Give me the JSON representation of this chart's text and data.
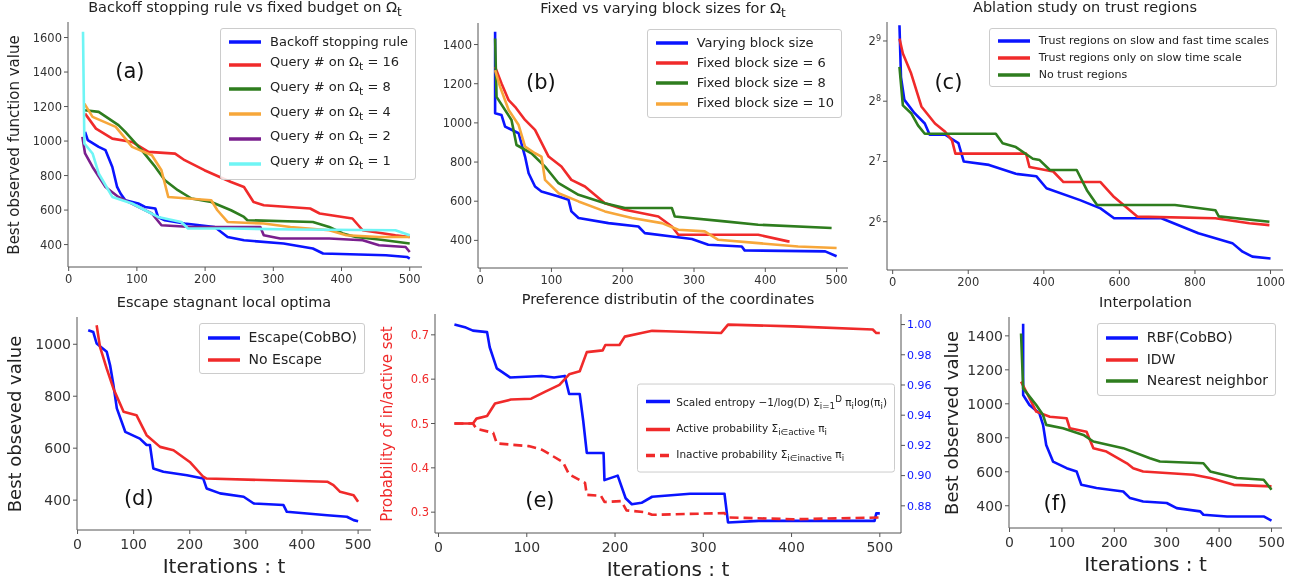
{
  "chart_data": [
    {
      "type": "line",
      "title": "Backoff stopping rule vs fixed budget on Ω$_{t}$",
      "ylabel": "Best observed function value",
      "annotations": [
        "(a)"
      ],
      "xlim": [
        -1,
        518
      ],
      "xticks": [
        0,
        100,
        200,
        300,
        400,
        500
      ],
      "ylim": [
        270,
        1690
      ],
      "yticks": [
        400,
        600,
        800,
        1000,
        1200,
        1400,
        1600
      ],
      "legend": "top right",
      "series": [
        {
          "name": "Backoff stopping rule",
          "color": "#0a14ff",
          "x": [
            24,
            28,
            44,
            54,
            64,
            71,
            76,
            83,
            102,
            112,
            127,
            131,
            141,
            170,
            214,
            233,
            257,
            315,
            358,
            373,
            465,
            496,
            500
          ],
          "values": [
            1053,
            1005,
            966,
            947,
            850,
            734,
            696,
            657,
            638,
            618,
            609,
            560,
            541,
            522,
            502,
            444,
            425,
            406,
            377,
            348,
            338,
            328,
            319
          ]
        },
        {
          "name": "Query # on Ω$_{t}$ = 16",
          "color": "#f02a2a",
          "x": [
            24,
            40,
            64,
            93,
            117,
            156,
            170,
            199,
            238,
            257,
            271,
            286,
            354,
            368,
            416,
            431,
            479,
            500
          ],
          "values": [
            1159,
            1072,
            1014,
            995,
            937,
            927,
            889,
            831,
            763,
            734,
            647,
            628,
            609,
            580,
            551,
            483,
            454,
            444
          ]
        },
        {
          "name": "Query # on Ω$_{t}$ = 8",
          "color": "#2e7d1e",
          "x": [
            24,
            44,
            73,
            83,
            107,
            127,
            141,
            160,
            180,
            209,
            238,
            257,
            262,
            358,
            382,
            402,
            421,
            455,
            500
          ],
          "values": [
            1179,
            1169,
            1092,
            1053,
            947,
            850,
            773,
            715,
            667,
            647,
            599,
            560,
            541,
            531,
            502,
            464,
            444,
            429,
            406
          ]
        },
        {
          "name": "Query # on Ω$_{t}$ = 4",
          "color": "#f7a73a",
          "x": [
            23,
            35,
            69,
            93,
            122,
            136,
            146,
            209,
            218,
            233,
            286,
            325,
            382,
            407,
            455,
            500
          ],
          "values": [
            1217,
            1140,
            1082,
            966,
            918,
            831,
            676,
            657,
            599,
            531,
            522,
            502,
            483,
            454,
            444,
            444
          ]
        },
        {
          "name": "Query # on Ω$_{t}$ = 2",
          "color": "#7a1f8e",
          "x": [
            20,
            24,
            35,
            54,
            73,
            102,
            122,
            136,
            180,
            281,
            286,
            310,
            382,
            431,
            455,
            494,
            500
          ],
          "values": [
            1024,
            928,
            850,
            734,
            676,
            618,
            580,
            512,
            502,
            502,
            454,
            435,
            435,
            425,
            396,
            386,
            357
          ]
        },
        {
          "name": "Query # on Ω$_{t}$ = 1",
          "color": "#6ff5f5",
          "x": [
            21,
            23,
            35,
            44,
            64,
            93,
            107,
            131,
            165,
            175,
            238,
            334,
            479,
            500
          ],
          "values": [
            1633,
            986,
            928,
            812,
            676,
            638,
            609,
            560,
            531,
            493,
            493,
            487,
            483,
            454
          ]
        }
      ]
    },
    {
      "type": "line",
      "title": "Fixed vs varying block sizes for Ω$_{t}$",
      "annotations": [
        "(b)"
      ],
      "xlim": [
        -3,
        516
      ],
      "xticks": [
        0,
        100,
        200,
        300,
        400,
        500
      ],
      "ylim": [
        259,
        1510
      ],
      "yticks": [
        400,
        600,
        800,
        1000,
        1200,
        1400
      ],
      "legend": "top right",
      "series": [
        {
          "name": "Varying block size",
          "color": "#0a14ff",
          "x": [
            21,
            21,
            30,
            35,
            54,
            63,
            68,
            77,
            86,
            110,
            124,
            128,
            138,
            180,
            222,
            231,
            269,
            297,
            320,
            367,
            371,
            484,
            500
          ],
          "values": [
            1465,
            1049,
            1040,
            981,
            947,
            828,
            743,
            675,
            650,
            624,
            607,
            548,
            514,
            488,
            471,
            437,
            420,
            407,
            378,
            369,
            349,
            344,
            319
          ]
        },
        {
          "name": "Fixed block size = 6",
          "color": "#f02a2a",
          "x": [
            21,
            30,
            40,
            49,
            63,
            77,
            96,
            114,
            128,
            147,
            175,
            203,
            250,
            269,
            278,
            390,
            432,
            434
          ],
          "values": [
            1286,
            1201,
            1116,
            1082,
            1015,
            964,
            828,
            777,
            709,
            675,
            590,
            556,
            522,
            471,
            429,
            429,
            395,
            395
          ]
        },
        {
          "name": "Fixed block size = 8",
          "color": "#2e7d1e",
          "x": [
            21,
            23,
            44,
            51,
            72,
            91,
            110,
            138,
            175,
            203,
            269,
            273,
            343,
            390,
            493
          ],
          "values": [
            1431,
            1133,
            1015,
            887,
            845,
            777,
            692,
            633,
            590,
            565,
            565,
            522,
            497,
            480,
            463
          ]
        },
        {
          "name": "Fixed block size = 10",
          "color": "#f7a73a",
          "x": [
            21,
            28,
            40,
            54,
            63,
            77,
            86,
            91,
            110,
            138,
            175,
            213,
            255,
            278,
            315,
            334,
            390,
            446,
            500
          ],
          "values": [
            1269,
            1184,
            1066,
            989,
            879,
            845,
            828,
            709,
            641,
            599,
            548,
            514,
            488,
            454,
            446,
            403,
            386,
            369,
            361
          ]
        }
      ]
    },
    {
      "type": "line",
      "title": "Ablation study on trust regions",
      "annotations": [
        "(c)"
      ],
      "log": "y",
      "xlim": [
        -15,
        1033
      ],
      "xticks": [
        0,
        200,
        400,
        600,
        800,
        1000
      ],
      "ylim": [
        36.7,
        637
      ],
      "yticks": [
        {
          "value": 64,
          "label": "2$^{6}$"
        },
        {
          "value": 128,
          "label": "2$^{7}$"
        },
        {
          "value": 256,
          "label": "2$^{8}$"
        },
        {
          "value": 512,
          "label": "2$^{9}$"
        }
      ],
      "legend": "top right",
      "series": [
        {
          "name": "Trust regions on slow and fast time scales",
          "color": "#0a14ff",
          "x": [
            18,
            22,
            31,
            58,
            85,
            98,
            139,
            174,
            188,
            255,
            326,
            380,
            407,
            496,
            550,
            586,
            711,
            809,
            899,
            926,
            952,
            1000
          ],
          "values": [
            613,
            338,
            260,
            223,
            198,
            174,
            174,
            158,
            128,
            123,
            111,
            108,
            94,
            82,
            74.6,
            66.6,
            66.6,
            56,
            50,
            45.3,
            42.8,
            41.9
          ]
        },
        {
          "name": "Trust regions only on slow time scale",
          "color": "#f02a2a",
          "x": [
            18,
            27,
            49,
            76,
            112,
            139,
            157,
            166,
            192,
            353,
            362,
            425,
            452,
            550,
            586,
            648,
            854,
            944,
            997
          ],
          "values": [
            526,
            443,
            352,
            241,
            198,
            180,
            163,
            140,
            140,
            140,
            120,
            114,
            101,
            101,
            85,
            67.8,
            66.6,
            62.8,
            61.5
          ]
        },
        {
          "name": "No trust regions",
          "color": "#2e7d1e",
          "x": [
            18,
            27,
            49,
            67,
            85,
            273,
            291,
            326,
            371,
            389,
            416,
            487,
            514,
            541,
            747,
            854,
            863,
            997
          ],
          "values": [
            380,
            244,
            223,
            194,
            176,
            176,
            158,
            151,
            132,
            130,
            116,
            116,
            92,
            77.5,
            77.5,
            73,
            68,
            64
          ]
        }
      ]
    },
    {
      "type": "line",
      "title": "Escape stagnant local optima",
      "xlabel": "Iterations : t",
      "ylabel": "Best obseved value",
      "annotations": [
        "(d)"
      ],
      "xlim": [
        -1,
        523
      ],
      "xticks": [
        0,
        100,
        200,
        300,
        400,
        500
      ],
      "ylim": [
        285,
        1105
      ],
      "yticks": [
        400,
        600,
        800,
        1000
      ],
      "legend": "top right",
      "series": [
        {
          "name": "Escape(CobBO)",
          "color": "#0a14ff",
          "x": [
            19,
            28,
            34,
            52,
            58,
            64,
            70,
            85,
            111,
            123,
            129,
            135,
            153,
            195,
            224,
            230,
            254,
            296,
            314,
            367,
            373,
            445,
            480,
            492,
            500
          ],
          "values": [
            1054,
            1047,
            1003,
            971,
            919,
            842,
            753,
            663,
            637,
            612,
            612,
            522,
            509,
            496,
            483,
            445,
            426,
            413,
            387,
            381,
            355,
            342,
            336,
            323,
            319
          ]
        },
        {
          "name": "No Escape",
          "color": "#f02a2a",
          "x": [
            34,
            40,
            52,
            64,
            82,
            105,
            123,
            147,
            171,
            200,
            224,
            230,
            445,
            456,
            468,
            492,
            500
          ],
          "values": [
            1073,
            990,
            906,
            829,
            740,
            727,
            650,
            605,
            592,
            547,
            490,
            483,
            471,
            458,
            432,
            419,
            394
          ]
        }
      ]
    },
    {
      "type": "line",
      "title": "Preference distributin of the coordinates",
      "xlabel": "Iterations : t",
      "ylabel": "Probability of in/active set",
      "annotations": [
        "(e)"
      ],
      "xlim": [
        -4,
        524
      ],
      "xticks": [
        0,
        100,
        200,
        300,
        400,
        500
      ],
      "ylim": [
        0.253,
        0.747
      ],
      "yticks": [
        0.3,
        0.4,
        0.5,
        0.6,
        0.7
      ],
      "y2lim": [
        0.862,
        1.007
      ],
      "y2ticks": [
        0.88,
        {
          "value": 0.9,
          "label": "0.90"
        },
        0.92,
        0.94,
        0.96,
        0.98,
        {
          "value": 1,
          "label": "1.00"
        }
      ],
      "legend": "right",
      "series": [
        {
          "name": "Scaled entropy −1/log(D) Σ$_{i=1}$$^{D}$ π$_{i}$log(π$_{i}$)",
          "color": "#0a14ff",
          "axis": "y2",
          "x": [
            18,
            31,
            39,
            55,
            58,
            62,
            66,
            81,
            117,
            131,
            143,
            148,
            160,
            164,
            168,
            187,
            188,
            203,
            212,
            219,
            230,
            242,
            285,
            324,
            328,
            363,
            441,
            494,
            496,
            500
          ],
          "values": [
            1.0,
            0.998,
            0.996,
            0.995,
            0.985,
            0.978,
            0.971,
            0.965,
            0.966,
            0.965,
            0.966,
            0.954,
            0.954,
            0.936,
            0.915,
            0.915,
            0.897,
            0.9,
            0.885,
            0.881,
            0.882,
            0.886,
            0.888,
            0.888,
            0.869,
            0.87,
            0.87,
            0.87,
            0.875,
            0.875
          ]
        },
        {
          "name": "Active probability Σ$_{i∈active}$ π$_{i}$",
          "color": "#f02a2a",
          "x": [
            18,
            39,
            43,
            55,
            64,
            82,
            105,
            121,
            137,
            148,
            160,
            168,
            186,
            189,
            205,
            211,
            230,
            242,
            258,
            320,
            328,
            402,
            492,
            496,
            500
          ],
          "values": [
            0.5,
            0.5,
            0.511,
            0.517,
            0.545,
            0.554,
            0.556,
            0.572,
            0.587,
            0.611,
            0.618,
            0.661,
            0.665,
            0.677,
            0.677,
            0.696,
            0.704,
            0.709,
            0.708,
            0.704,
            0.723,
            0.719,
            0.712,
            0.704,
            0.704
          ]
        },
        {
          "name": "Inactive probability Σ$_{i∈inactive}$ π$_{i}$",
          "color": "#f02a2a",
          "line_style": "dashed",
          "x": [
            18,
            39,
            43,
            62,
            66,
            102,
            117,
            141,
            148,
            166,
            168,
            184,
            188,
            207,
            213,
            234,
            242,
            324,
            328,
            402,
            500
          ],
          "values": [
            0.5,
            0.5,
            0.488,
            0.479,
            0.455,
            0.449,
            0.441,
            0.413,
            0.385,
            0.366,
            0.339,
            0.337,
            0.323,
            0.325,
            0.304,
            0.3,
            0.294,
            0.298,
            0.288,
            0.284,
            0.288
          ]
        }
      ]
    },
    {
      "type": "line",
      "title": "Interpolation",
      "xlabel": "Iterations : t",
      "ylabel": "Best observed value",
      "annotations": [
        "(f)"
      ],
      "xlim": [
        -1,
        520
      ],
      "xticks": [
        0,
        100,
        200,
        300,
        400,
        500
      ],
      "ylim": [
        269,
        1511
      ],
      "yticks": [
        400,
        600,
        800,
        1000,
        1200,
        1400
      ],
      "legend": "top right",
      "series": [
        {
          "name": "RBF(CobBO)",
          "color": "#0a14ff",
          "x": [
            26,
            26,
            38,
            57,
            64,
            70,
            83,
            109,
            128,
            137,
            166,
            217,
            230,
            255,
            300,
            319,
            364,
            370,
            415,
            485,
            500
          ],
          "values": [
            1472,
            1052,
            993,
            944,
            876,
            758,
            660,
            621,
            602,
            523,
            504,
            484,
            445,
            425,
            416,
            386,
            367,
            347,
            337,
            337,
            312
          ]
        },
        {
          "name": "IDW",
          "color": "#f02a2a",
          "x": [
            22,
            32,
            51,
            77,
            109,
            115,
            147,
            160,
            185,
            224,
            236,
            255,
            351,
            383,
            428,
            500
          ],
          "values": [
            1130,
            1071,
            954,
            924,
            915,
            856,
            836,
            739,
            719,
            650,
            621,
            602,
            582,
            563,
            523,
            514
          ]
        },
        {
          "name": "Nearest neighbor",
          "color": "#2e7d1e",
          "x": [
            22,
            26,
            51,
            64,
            70,
            102,
            141,
            160,
            217,
            268,
            287,
            370,
            383,
            434,
            485,
            500
          ],
          "values": [
            1414,
            1091,
            993,
            934,
            876,
            856,
            817,
            778,
            739,
            680,
            660,
            650,
            602,
            563,
            553,
            494
          ]
        }
      ]
    }
  ]
}
